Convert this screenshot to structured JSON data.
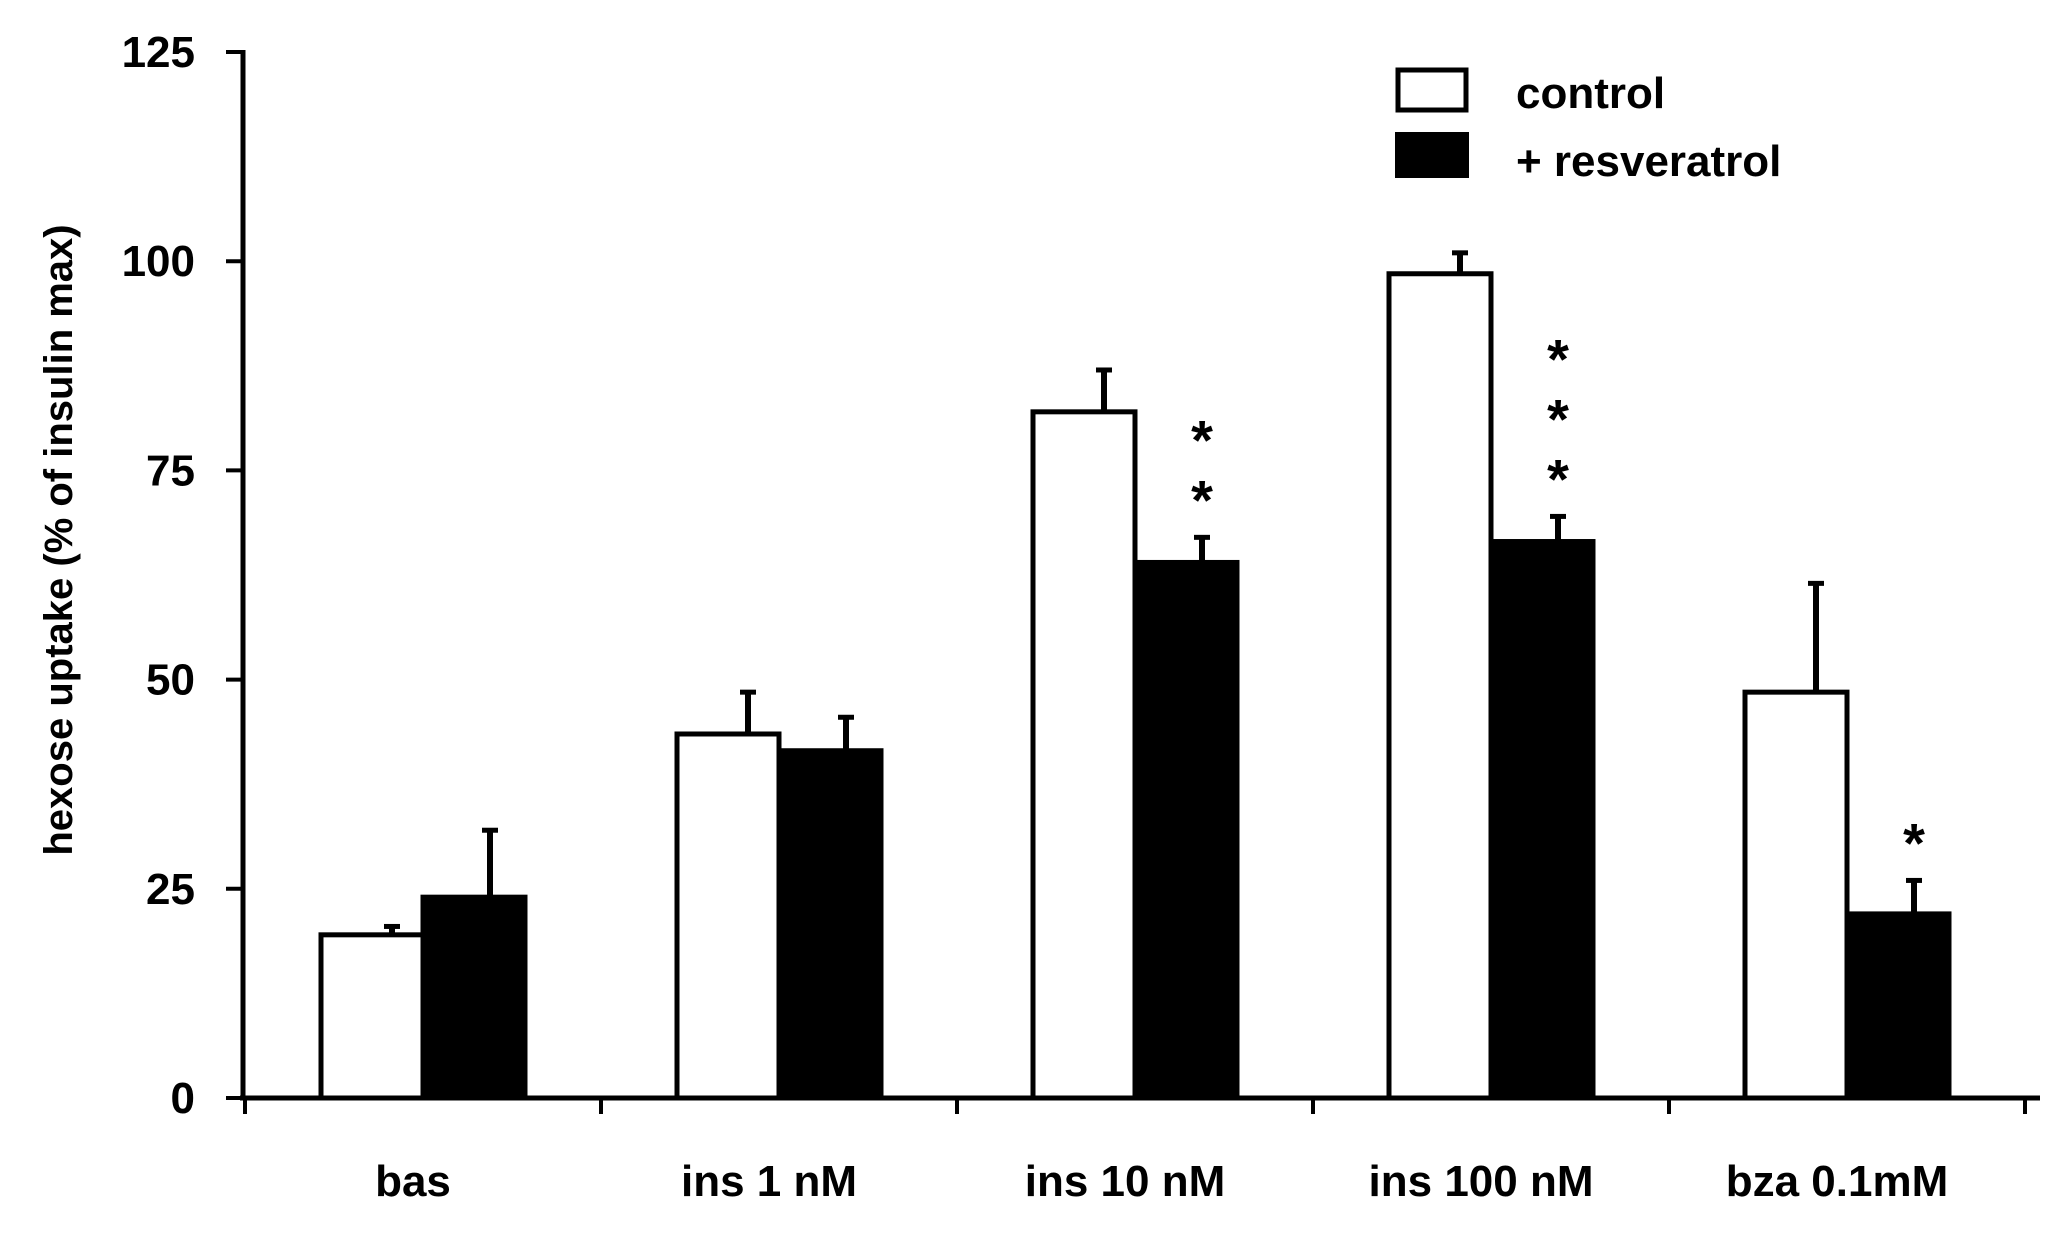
{
  "chart_data": {
    "type": "bar",
    "title": "",
    "xlabel": "",
    "ylabel": "hexose uptake  (% of insulin max)",
    "ylim": [
      0,
      125
    ],
    "yticks": [
      "0",
      "25",
      "50",
      "75",
      "100",
      "125"
    ],
    "categories": [
      "bas",
      "ins 1 nM",
      "ins 10 nM",
      "ins 100 nM",
      "bza 0.1mM"
    ],
    "series": [
      {
        "name": "control",
        "fill": "#ffffff",
        "values": [
          19.5,
          43.5,
          82,
          98.5,
          48.5
        ],
        "errors": [
          1,
          5,
          5,
          2.5,
          13
        ]
      },
      {
        "name": "+ resveratrol",
        "fill": "#000000",
        "values": [
          24,
          41.5,
          64,
          66.5,
          22
        ],
        "errors": [
          8,
          4,
          3,
          3,
          4
        ]
      }
    ],
    "significance": [
      "",
      "",
      "* *",
      "* * *",
      "*"
    ],
    "legend_position": "top-right",
    "grid": false
  }
}
